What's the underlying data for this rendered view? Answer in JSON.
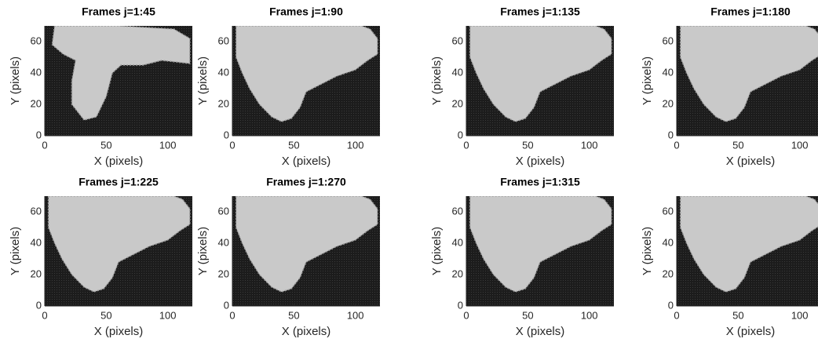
{
  "chart_data": [
    {
      "type": "image",
      "title": "Frames j=1:45",
      "xlabel": "X (pixels)",
      "ylabel": "Y (pixels)",
      "xlim": [
        0,
        120
      ],
      "ylim": [
        0,
        70
      ],
      "xticks": [
        0,
        50,
        100
      ],
      "yticks": [
        0,
        20,
        40,
        60
      ]
    },
    {
      "type": "image",
      "title": "Frames j=1:90",
      "xlabel": "X (pixels)",
      "ylabel": "Y (pixels)",
      "xlim": [
        0,
        120
      ],
      "ylim": [
        0,
        70
      ],
      "xticks": [
        0,
        50,
        100
      ],
      "yticks": [
        0,
        20,
        40,
        60
      ]
    },
    {
      "type": "image",
      "title": "Frames j=1:135",
      "xlabel": "X (pixels)",
      "ylabel": "Y (pixels)",
      "xlim": [
        0,
        120
      ],
      "ylim": [
        0,
        70
      ],
      "xticks": [
        0,
        50,
        100
      ],
      "yticks": [
        0,
        20,
        40,
        60
      ]
    },
    {
      "type": "image",
      "title": "Frames j=1:180",
      "xlabel": "X (pixels)",
      "ylabel": "Y (pixels)",
      "xlim": [
        0,
        120
      ],
      "ylim": [
        0,
        70
      ],
      "xticks": [
        0,
        50,
        100
      ],
      "yticks": [
        0,
        20,
        40,
        60
      ]
    },
    {
      "type": "image",
      "title": "Frames j=1:225",
      "xlabel": "X (pixels)",
      "ylabel": "Y (pixels)",
      "xlim": [
        0,
        120
      ],
      "ylim": [
        0,
        70
      ],
      "xticks": [
        0,
        50,
        100
      ],
      "yticks": [
        0,
        20,
        40,
        60
      ]
    },
    {
      "type": "image",
      "title": "Frames j=1:270",
      "xlabel": "X (pixels)",
      "ylabel": "Y (pixels)",
      "xlim": [
        0,
        120
      ],
      "ylim": [
        0,
        70
      ],
      "xticks": [
        0,
        50,
        100
      ],
      "yticks": [
        0,
        20,
        40,
        60
      ]
    },
    {
      "type": "image",
      "title": "Frames j=1:315",
      "xlabel": "X (pixels)",
      "ylabel": "Y (pixels)",
      "xlim": [
        0,
        120
      ],
      "ylim": [
        0,
        70
      ],
      "xticks": [
        0,
        50,
        100
      ],
      "yticks": [
        0,
        20,
        40,
        60
      ]
    },
    {
      "type": "image",
      "xlabel": "X (pixels)",
      "ylabel": "Y (pixels)",
      "xlim": [
        0,
        120
      ],
      "ylim": [
        0,
        70
      ],
      "xticks": [
        0,
        50,
        100
      ],
      "yticks": [
        0,
        20,
        40,
        60
      ]
    }
  ]
}
